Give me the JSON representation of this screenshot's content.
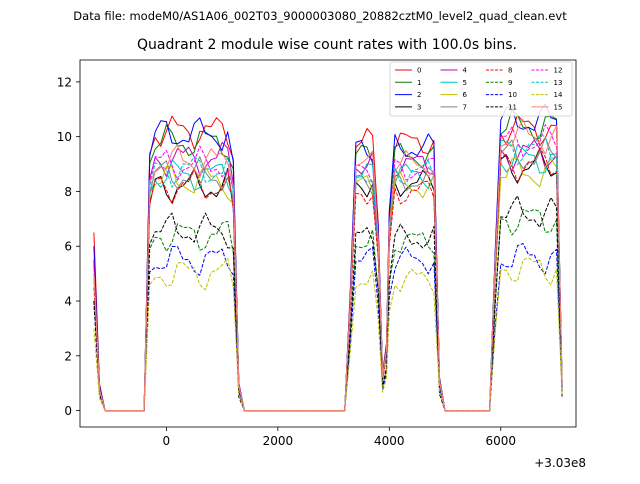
{
  "figure": {
    "suptitle": "Data file: modeM0/AS1A06_002T03_9000003080_20882cztM0_level2_quad_clean.evt",
    "title": "Quadrant 2 module wise count rates with 100.0s bins.",
    "offset_label": "+3.03e8"
  },
  "chart_data": {
    "type": "line",
    "title": "Quadrant 2 module wise count rates with 100.0s bins.",
    "xlabel": "",
    "ylabel": "",
    "x_offset": "+3.03e8",
    "xlim": [
      -1550,
      7350
    ],
    "ylim": [
      -0.6,
      12.8
    ],
    "xticks": [
      0,
      2000,
      4000,
      6000
    ],
    "xtick_labels": [
      "0",
      "2000",
      "4000",
      "6000"
    ],
    "yticks": [
      0,
      2,
      4,
      6,
      8,
      10,
      12
    ],
    "ytick_labels": [
      "0",
      "2",
      "4",
      "6",
      "8",
      "10",
      "12"
    ],
    "grid": false,
    "legend_position": "top-right",
    "legend_columns": 4,
    "segments": [
      {
        "start": -1300,
        "end": 1300,
        "anchor_x": [
          -1300,
          -1200,
          -1100,
          -400,
          -300,
          -200,
          -100,
          0,
          100,
          200,
          300,
          400,
          500,
          600,
          700,
          800,
          900,
          1000,
          1100,
          1200,
          1300
        ]
      },
      {
        "start": 3200,
        "end": 4900,
        "anchor_x": [
          3200,
          3300,
          3400,
          3500,
          3600,
          3700,
          3800,
          3850,
          3900,
          4000,
          4100,
          4200,
          4300,
          4400,
          4500,
          4600,
          4700,
          4800,
          4900,
          5000,
          5100
        ]
      },
      {
        "start": 5800,
        "end": 7100,
        "anchor_x": [
          5800,
          5900,
          6000,
          6100,
          6200,
          6300,
          6400,
          6500,
          6600,
          6700,
          6800,
          6900,
          7000,
          7100
        ]
      }
    ],
    "series": [
      {
        "name": "0",
        "color": "#ff0000",
        "dash": "solid",
        "base1": 10.2,
        "base2": 9.8,
        "base3": 10.3,
        "start": 6.5,
        "end": 1.0
      },
      {
        "name": "1",
        "color": "#008000",
        "dash": "solid",
        "base1": 9.8,
        "base2": 9.3,
        "base3": 10.4,
        "start": 5.0,
        "end": 1.0
      },
      {
        "name": "2",
        "color": "#0000ff",
        "dash": "solid",
        "base1": 10.1,
        "base2": 9.6,
        "base3": 10.6,
        "start": 6.0,
        "end": 1.0
      },
      {
        "name": "3",
        "color": "#000000",
        "dash": "solid",
        "base1": 8.2,
        "base2": 8.3,
        "base3": 8.9,
        "start": 5.5,
        "end": 0.8
      },
      {
        "name": "4",
        "color": "#c000c0",
        "dash": "solid",
        "base1": 9.2,
        "base2": 9.0,
        "base3": 9.4,
        "start": 5.5,
        "end": 1.0
      },
      {
        "name": "5",
        "color": "#00bfbf",
        "dash": "solid",
        "base1": 8.6,
        "base2": 8.6,
        "base3": 9.2,
        "start": 5.0,
        "end": 0.9
      },
      {
        "name": "6",
        "color": "#bfbf00",
        "dash": "solid",
        "base1": 8.4,
        "base2": 8.2,
        "base3": 8.7,
        "start": 5.0,
        "end": 0.9
      },
      {
        "name": "7",
        "color": "#808080",
        "dash": "solid",
        "base1": 8.6,
        "base2": 8.4,
        "base3": 9.3,
        "start": 5.0,
        "end": 0.9
      },
      {
        "name": "8",
        "color": "#ff0000",
        "dash": "dashed",
        "base1": 8.2,
        "base2": 8.0,
        "base3": 9.0,
        "start": 4.5,
        "end": 0.9
      },
      {
        "name": "9",
        "color": "#008000",
        "dash": "dashed",
        "base1": 6.4,
        "base2": 6.2,
        "base3": 7.0,
        "start": 4.0,
        "end": 0.7
      },
      {
        "name": "10",
        "color": "#0000ff",
        "dash": "dashed",
        "base1": 5.5,
        "base2": 5.5,
        "base3": 5.6,
        "start": 4.0,
        "end": 0.7
      },
      {
        "name": "11",
        "color": "#000000",
        "dash": "dashed",
        "base1": 6.6,
        "base2": 6.3,
        "base3": 7.2,
        "start": 4.0,
        "end": 0.5
      },
      {
        "name": "12",
        "color": "#ff00ff",
        "dash": "dashed",
        "base1": 9.0,
        "base2": 8.8,
        "base3": 9.8,
        "start": 5.0,
        "end": 0.9
      },
      {
        "name": "13",
        "color": "#00bfbf",
        "dash": "dashed",
        "base1": 8.8,
        "base2": 8.7,
        "base3": 9.6,
        "start": 5.0,
        "end": 0.9
      },
      {
        "name": "14",
        "color": "#bfbf00",
        "dash": "dashed",
        "base1": 5.0,
        "base2": 4.8,
        "base3": 5.2,
        "start": 3.0,
        "end": 0.6
      },
      {
        "name": "15",
        "color": "#fa8072",
        "dash": "solid",
        "base1": 9.1,
        "base2": 9.0,
        "base3": 10.0,
        "start": 5.0,
        "end": 0.9
      }
    ]
  }
}
